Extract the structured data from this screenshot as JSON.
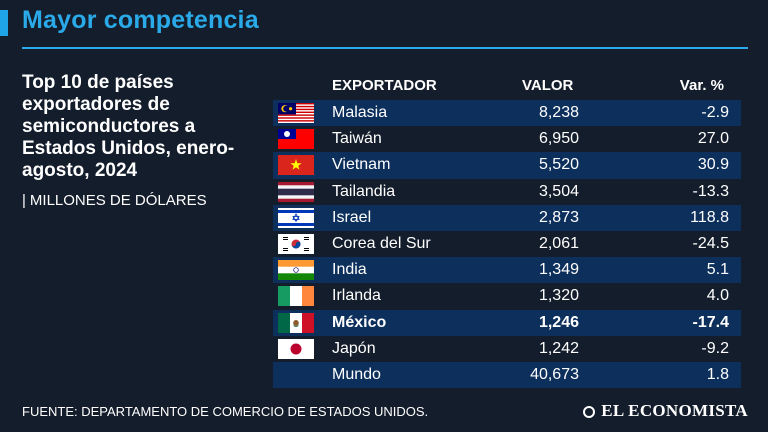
{
  "header": {
    "title": "Mayor competencia"
  },
  "subtitle": "Top 10 de países exportadores de semiconductores a Estados Unidos, enero-agosto, 2024",
  "units": "MILLONES DE DÓLARES",
  "units_separator": "|",
  "columns": {
    "exporter": "EXPORTADOR",
    "value": "VALOR",
    "change": "Var. %"
  },
  "chart_data": {
    "type": "table",
    "title": "Top 10 de países exportadores de semiconductores a Estados Unidos, enero-agosto, 2024",
    "units": "Millones de dólares",
    "columns": [
      "EXPORTADOR",
      "VALOR",
      "Var. %"
    ],
    "rows": [
      {
        "country": "Malasia",
        "value": "8,238",
        "change": "-2.9",
        "flag": "malaysia-flag-icon"
      },
      {
        "country": "Taiwán",
        "value": "6,950",
        "change": "27.0",
        "flag": "taiwan-flag-icon"
      },
      {
        "country": "Vietnam",
        "value": "5,520",
        "change": "30.9",
        "flag": "vietnam-flag-icon"
      },
      {
        "country": "Tailandia",
        "value": "3,504",
        "change": "-13.3",
        "flag": "thailand-flag-icon"
      },
      {
        "country": "Israel",
        "value": "2,873",
        "change": "118.8",
        "flag": "israel-flag-icon"
      },
      {
        "country": "Corea del Sur",
        "value": "2,061",
        "change": "-24.5",
        "flag": "south-korea-flag-icon"
      },
      {
        "country": "India",
        "value": "1,349",
        "change": "5.1",
        "flag": "india-flag-icon"
      },
      {
        "country": "Irlanda",
        "value": "1,320",
        "change": "4.0",
        "flag": "ireland-flag-icon"
      },
      {
        "country": "México",
        "value": "1,246",
        "change": "-17.4",
        "flag": "mexico-flag-icon",
        "highlight": true
      },
      {
        "country": "Japón",
        "value": "1,242",
        "change": "-9.2",
        "flag": "japan-flag-icon"
      }
    ],
    "total": {
      "country": "Mundo",
      "value": "40,673",
      "change": "1.8"
    }
  },
  "footer": {
    "source": "FUENTE:  DEPARTAMENTO DE COMERCIO DE ESTADOS UNIDOS.",
    "brand": "EL ECONOMISTA"
  },
  "colors": {
    "background": "#141d2b",
    "accent": "#2aaae8",
    "row_band": "#0d2f5c",
    "text": "#ffffff"
  }
}
